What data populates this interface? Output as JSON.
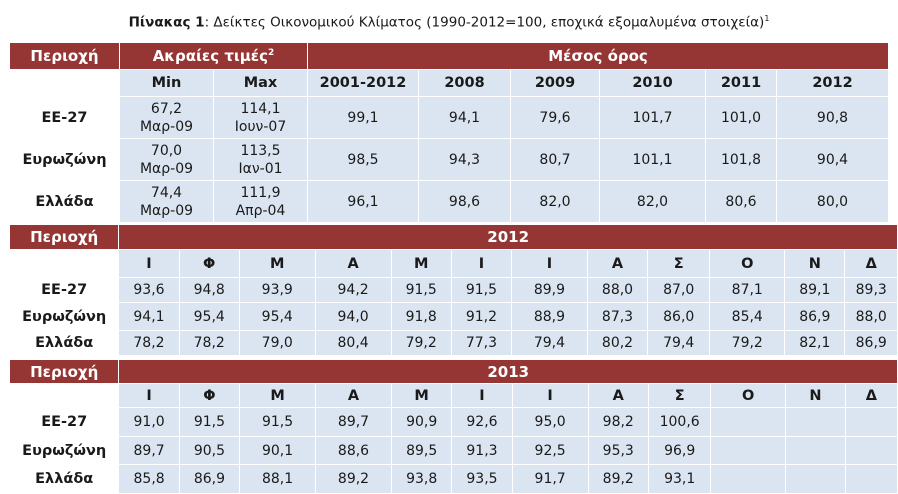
{
  "title": {
    "bold": "Πίνακας 1",
    "rest": ": Δείκτες Οικονομικού Κλίματος (1990-2012=100, εποχικά εξομαλυμένα στοιχεία)",
    "note": "1"
  },
  "t1": {
    "h_region": "Περιοχή",
    "h_extreme": "Ακραίες τιμές",
    "h_extreme_note": "2",
    "h_avg": "Μέσος όρος",
    "cols": [
      "Min",
      "Max",
      "2001-2012",
      "2008",
      "2009",
      "2010",
      "2011",
      "2012"
    ],
    "rows": [
      {
        "region": "ΕΕ-27",
        "min_val": "67,2",
        "min_date": "Μαρ-09",
        "max_val": "114,1",
        "max_date": "Ιουν-07",
        "values": [
          "99,1",
          "94,1",
          "79,6",
          "101,7",
          "101,0",
          "90,8"
        ]
      },
      {
        "region": "Ευρωζώνη",
        "min_val": "70,0",
        "min_date": "Μαρ-09",
        "max_val": "113,5",
        "max_date": "Ιαν-01",
        "values": [
          "98,5",
          "94,3",
          "80,7",
          "101,1",
          "101,8",
          "90,4"
        ]
      },
      {
        "region": "Ελλάδα",
        "min_val": "74,4",
        "min_date": "Μαρ-09",
        "max_val": "111,9",
        "max_date": "Απρ-04",
        "values": [
          "96,1",
          "98,6",
          "82,0",
          "82,0",
          "80,6",
          "80,0"
        ]
      }
    ]
  },
  "t2": {
    "h_region": "Περιοχή",
    "h_year": "2012",
    "months": [
      "Ι",
      "Φ",
      "Μ",
      "Α",
      "Μ",
      "Ι",
      "Ι",
      "Α",
      "Σ",
      "Ο",
      "Ν",
      "Δ"
    ],
    "rows": [
      {
        "region": "ΕΕ-27",
        "values": [
          "93,6",
          "94,8",
          "93,9",
          "94,2",
          "91,5",
          "91,5",
          "89,9",
          "88,0",
          "87,0",
          "87,1",
          "89,1",
          "89,3"
        ]
      },
      {
        "region": "Ευρωζώνη",
        "values": [
          "94,1",
          "95,4",
          "95,4",
          "94,0",
          "91,8",
          "91,2",
          "88,9",
          "87,3",
          "86,0",
          "85,4",
          "86,9",
          "88,0"
        ]
      },
      {
        "region": "Ελλάδα",
        "values": [
          "78,2",
          "78,2",
          "79,0",
          "80,4",
          "79,2",
          "77,3",
          "79,4",
          "80,2",
          "79,4",
          "79,2",
          "82,1",
          "86,9"
        ]
      }
    ]
  },
  "t3": {
    "h_region": "Περιοχή",
    "h_year": "2013",
    "months": [
      "Ι",
      "Φ",
      "Μ",
      "Α",
      "Μ",
      "Ι",
      "Ι",
      "Α",
      "Σ",
      "Ο",
      "Ν",
      "Δ"
    ],
    "rows": [
      {
        "region": "ΕΕ-27",
        "values": [
          "91,0",
          "91,5",
          "91,5",
          "89,7",
          "90,9",
          "92,6",
          "95,0",
          "98,2",
          "100,6",
          "",
          "",
          ""
        ]
      },
      {
        "region": "Ευρωζώνη",
        "values": [
          "89,7",
          "90,5",
          "90,1",
          "88,6",
          "89,5",
          "91,3",
          "92,5",
          "95,3",
          "96,9",
          "",
          "",
          ""
        ]
      },
      {
        "region": "Ελλάδα",
        "values": [
          "85,8",
          "86,9",
          "88,1",
          "89,2",
          "93,8",
          "93,5",
          "91,7",
          "89,2",
          "93,1",
          "",
          "",
          ""
        ]
      }
    ]
  }
}
